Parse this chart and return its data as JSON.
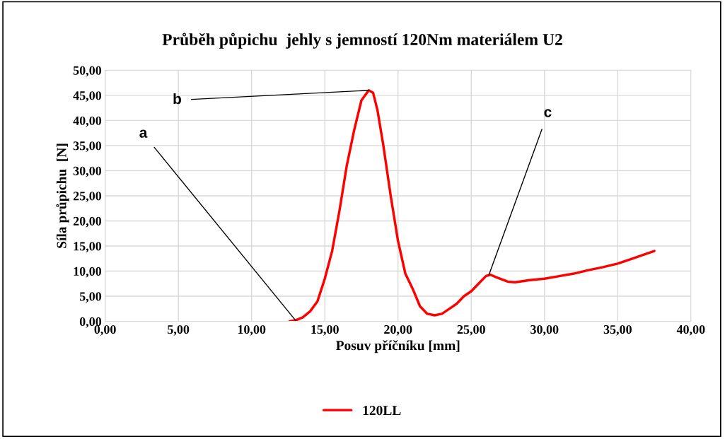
{
  "chart_data": {
    "type": "line",
    "title": "Průběh půpichu  jehly s jemností 120Nm materiálem U2",
    "xlabel": "Posuv příčníku [mm]",
    "ylabel": "Síla průpichu  [N]",
    "series": [
      {
        "name": "120LL",
        "color": "#ff0000",
        "x": [
          12.6,
          13.0,
          13.5,
          14.0,
          14.5,
          15.0,
          15.5,
          16.0,
          16.5,
          17.0,
          17.5,
          18.0,
          18.3,
          18.6,
          19.0,
          19.5,
          20.0,
          20.5,
          21.0,
          21.5,
          22.0,
          22.5,
          23.0,
          23.5,
          24.0,
          24.5,
          25.0,
          25.5,
          26.0,
          26.3,
          26.7,
          27.5,
          28.0,
          29.0,
          30.0,
          31.0,
          32.0,
          33.0,
          34.0,
          35.0,
          36.0,
          37.0,
          37.5
        ],
        "values": [
          0,
          0.2,
          0.8,
          2,
          4,
          8.5,
          14,
          22,
          31,
          38,
          44,
          46,
          45.5,
          42,
          35,
          25,
          16,
          9.5,
          6.5,
          3,
          1.5,
          1.2,
          1.5,
          2.5,
          3.5,
          5,
          6,
          7.5,
          9,
          9.3,
          8.8,
          7.9,
          7.8,
          8.2,
          8.5,
          9,
          9.5,
          10.2,
          10.8,
          11.5,
          12.5,
          13.5,
          14
        ]
      }
    ],
    "annotations": [
      {
        "text": "a",
        "x": 13.0,
        "y": 0.2
      },
      {
        "text": "b",
        "x": 18.0,
        "y": 46
      },
      {
        "text": "c",
        "x": 26.2,
        "y": 9.2
      }
    ],
    "xlim": [
      0,
      40
    ],
    "ylim": [
      0,
      50
    ],
    "xticks": [
      {
        "value": 0,
        "label": "0,00"
      },
      {
        "value": 5,
        "label": "5,00"
      },
      {
        "value": 10,
        "label": "10,00"
      },
      {
        "value": 15,
        "label": "15,00"
      },
      {
        "value": 20,
        "label": "20,00"
      },
      {
        "value": 25,
        "label": "25,00"
      },
      {
        "value": 30,
        "label": "30,00"
      },
      {
        "value": 35,
        "label": "35,00"
      },
      {
        "value": 40,
        "label": "40,00"
      }
    ],
    "yticks": [
      {
        "value": 0,
        "label": "0,00"
      },
      {
        "value": 5,
        "label": "5,00"
      },
      {
        "value": 10,
        "label": "10,00"
      },
      {
        "value": 15,
        "label": "15,00"
      },
      {
        "value": 20,
        "label": "20,00"
      },
      {
        "value": 25,
        "label": "25,00"
      },
      {
        "value": 30,
        "label": "30,00"
      },
      {
        "value": 35,
        "label": "35,00"
      },
      {
        "value": 40,
        "label": "40,00"
      },
      {
        "value": 45,
        "label": "45,00"
      },
      {
        "value": 50,
        "label": "50,00"
      }
    ],
    "grid": true,
    "legend": "bottom",
    "marker": "none",
    "line_style": "solid"
  }
}
